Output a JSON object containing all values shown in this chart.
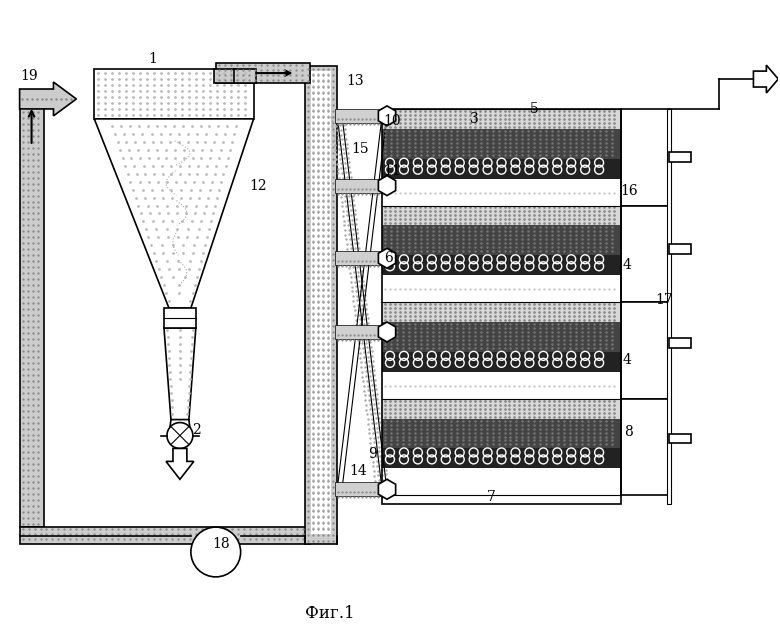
{
  "bg_color": "#ffffff",
  "fig_caption": "Фиг.1",
  "label_color": "#000000",
  "dot_color": "#aaaaaa",
  "dark_color": "#555555",
  "darker_color": "#333333",
  "pipe_fill": "#cccccc",
  "cyclone_dot": "#bbbbbb"
}
